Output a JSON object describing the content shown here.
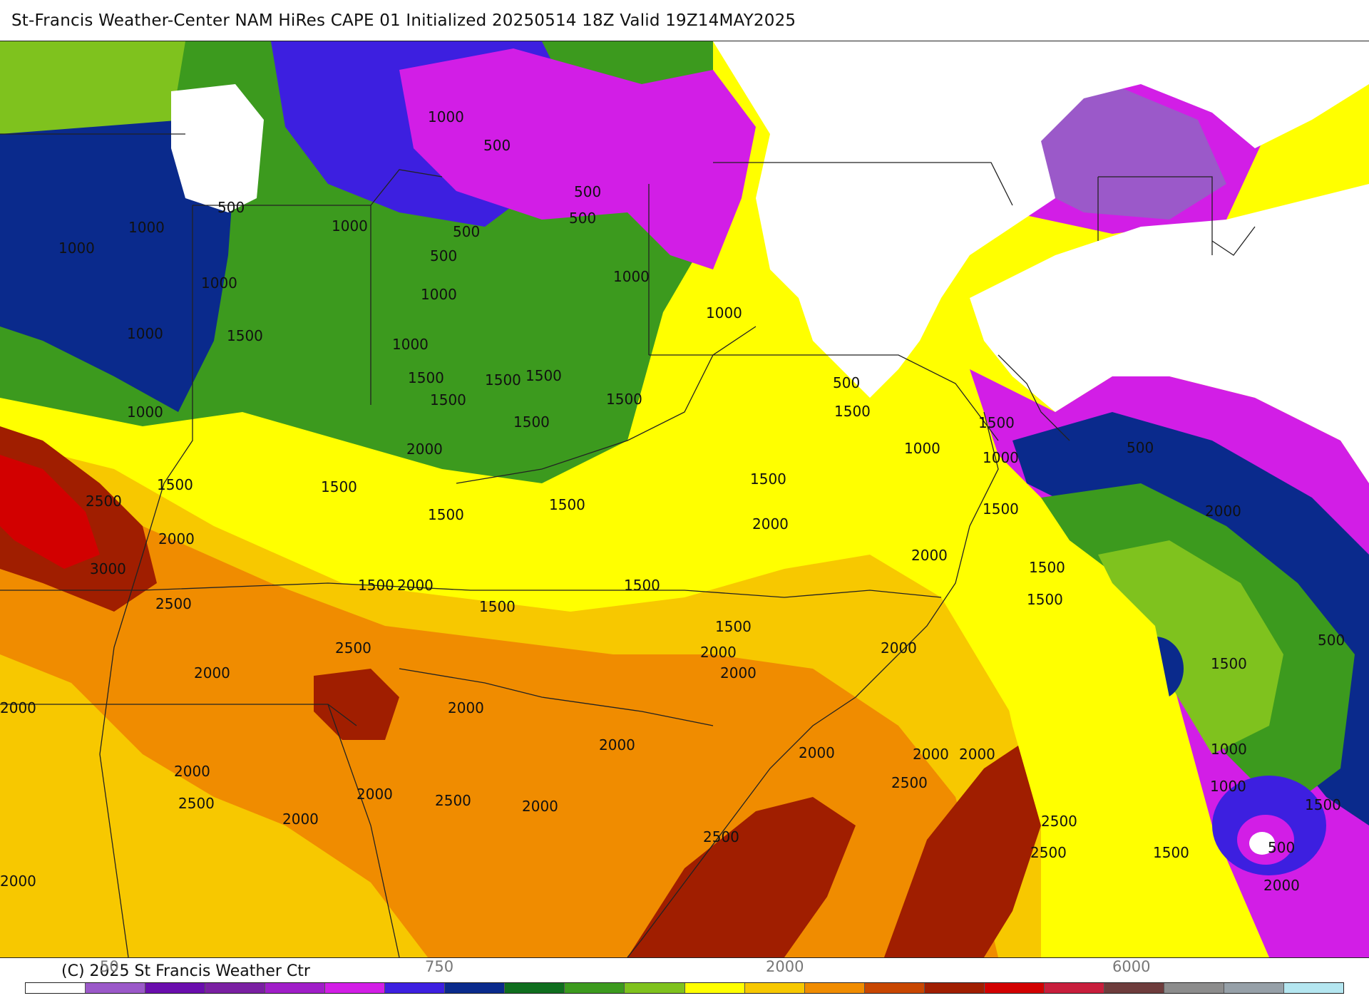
{
  "title": "St-Francis Weather-Center NAM HiRes CAPE  01 Initialized 20250514 18Z Valid 19Z14MAY2025",
  "copyright": "(C) 2025 St Francis Weather Ctr",
  "legend": {
    "ticks": [
      "50",
      "750",
      "2000",
      "6000"
    ],
    "colors": [
      "#ffffff",
      "#9b59c9",
      "#6a0dad",
      "#7a1fa2",
      "#a01ec8",
      "#d21ee6",
      "#3d1fe0",
      "#0a2a8c",
      "#0f6e1e",
      "#3c9a1e",
      "#7fc21e",
      "#ffff00",
      "#f7c800",
      "#f08c00",
      "#c84600",
      "#a01e00",
      "#d20000",
      "#c81e3c",
      "#6e3c3c",
      "#8c8c8c",
      "#96a0a8",
      "#b4e6f0"
    ]
  },
  "contour_labels": [
    "1000",
    "500",
    "500",
    "500",
    "500",
    "1000",
    "1000",
    "500",
    "500",
    "1000",
    "1000",
    "1000",
    "1000",
    "1000",
    "1000",
    "1500",
    "1000",
    "1000",
    "1500",
    "1500",
    "1500",
    "1500",
    "1500",
    "1500",
    "1500",
    "2000",
    "500",
    "1500",
    "1500",
    "1000",
    "1000",
    "500",
    "1500",
    "2500",
    "1500",
    "1500",
    "2000",
    "1500",
    "3000",
    "1500",
    "2000",
    "2000",
    "2000",
    "1500",
    "2500",
    "1500",
    "1500",
    "2500",
    "1500",
    "1500",
    "2000",
    "1500",
    "2000",
    "2000",
    "500",
    "1500",
    "1000",
    "2000",
    "2000",
    "2000",
    "2000",
    "2000",
    "2000",
    "2000",
    "2500",
    "2500",
    "2000",
    "2000",
    "2000",
    "2500",
    "2000",
    "2500",
    "2500",
    "2000",
    "2500",
    "2000",
    "1000",
    "1500",
    "1500",
    "500",
    "2000"
  ]
}
